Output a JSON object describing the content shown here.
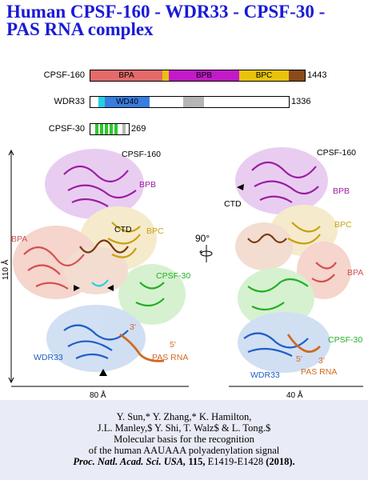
{
  "title": "Human CPSF-160 - WDR33 - CPSF-30 - PAS RNA complex",
  "domains": {
    "cpsf160": {
      "label": "CPSF-160",
      "length": "1443",
      "bpa": "BPA",
      "bpb": "BPB",
      "bpc": "BPC"
    },
    "wdr33": {
      "label": "WDR33",
      "length": "1336",
      "wd40": "WD40"
    },
    "cpsf30": {
      "label": "CPSF-30",
      "length": "269"
    }
  },
  "figure": {
    "left_labels": {
      "cpsf160": "CPSF-160",
      "bpb": "BPB",
      "bpa": "BPA",
      "ctd": "CTD",
      "bpc": "BPC",
      "cpsf30": "CPSF-30",
      "wdr33": "WDR33",
      "pas_rna": "PAS RNA",
      "five_prime": "5'",
      "three_prime": "3'"
    },
    "right_labels": {
      "cpsf160": "CPSF-160",
      "bpb": "BPB",
      "ctd": "CTD",
      "bpc": "BPC",
      "bpa": "BPA",
      "cpsf30": "CPSF-30",
      "wdr33": "WDR33",
      "pas_rna": "PAS RNA",
      "five_prime": "5'",
      "three_prime": "3'"
    },
    "height_scale": "110 Å",
    "width_left": "80 Å",
    "width_right": "40 Å",
    "rotation": "90°"
  },
  "citation": {
    "authors_1": "Y. Sun,* Y. Zhang,* K. Hamilton,",
    "authors_2": "J.L. Manley,$ Y. Shi, T. Walz$ & L. Tong.$",
    "title_1": "Molecular basis for the recognition",
    "title_2": "of the human AAUAAA polyadenylation signal",
    "journal": "Proc. Natl. Acad. Sci. USA,",
    "volume": "115,",
    "pages": "E1419-E1428",
    "year": "(2018)."
  },
  "colors": {
    "title": "#1a1ad6",
    "bpa": "#e26a6a",
    "bpb": "#c21ac9",
    "bpc": "#e8c30b",
    "ctd": "#8a4a1a",
    "wd40": "#3a7de0",
    "cpsf30": "#2ec82e",
    "rna": "#d2691e",
    "citation_bg": "#e9ebf6"
  }
}
